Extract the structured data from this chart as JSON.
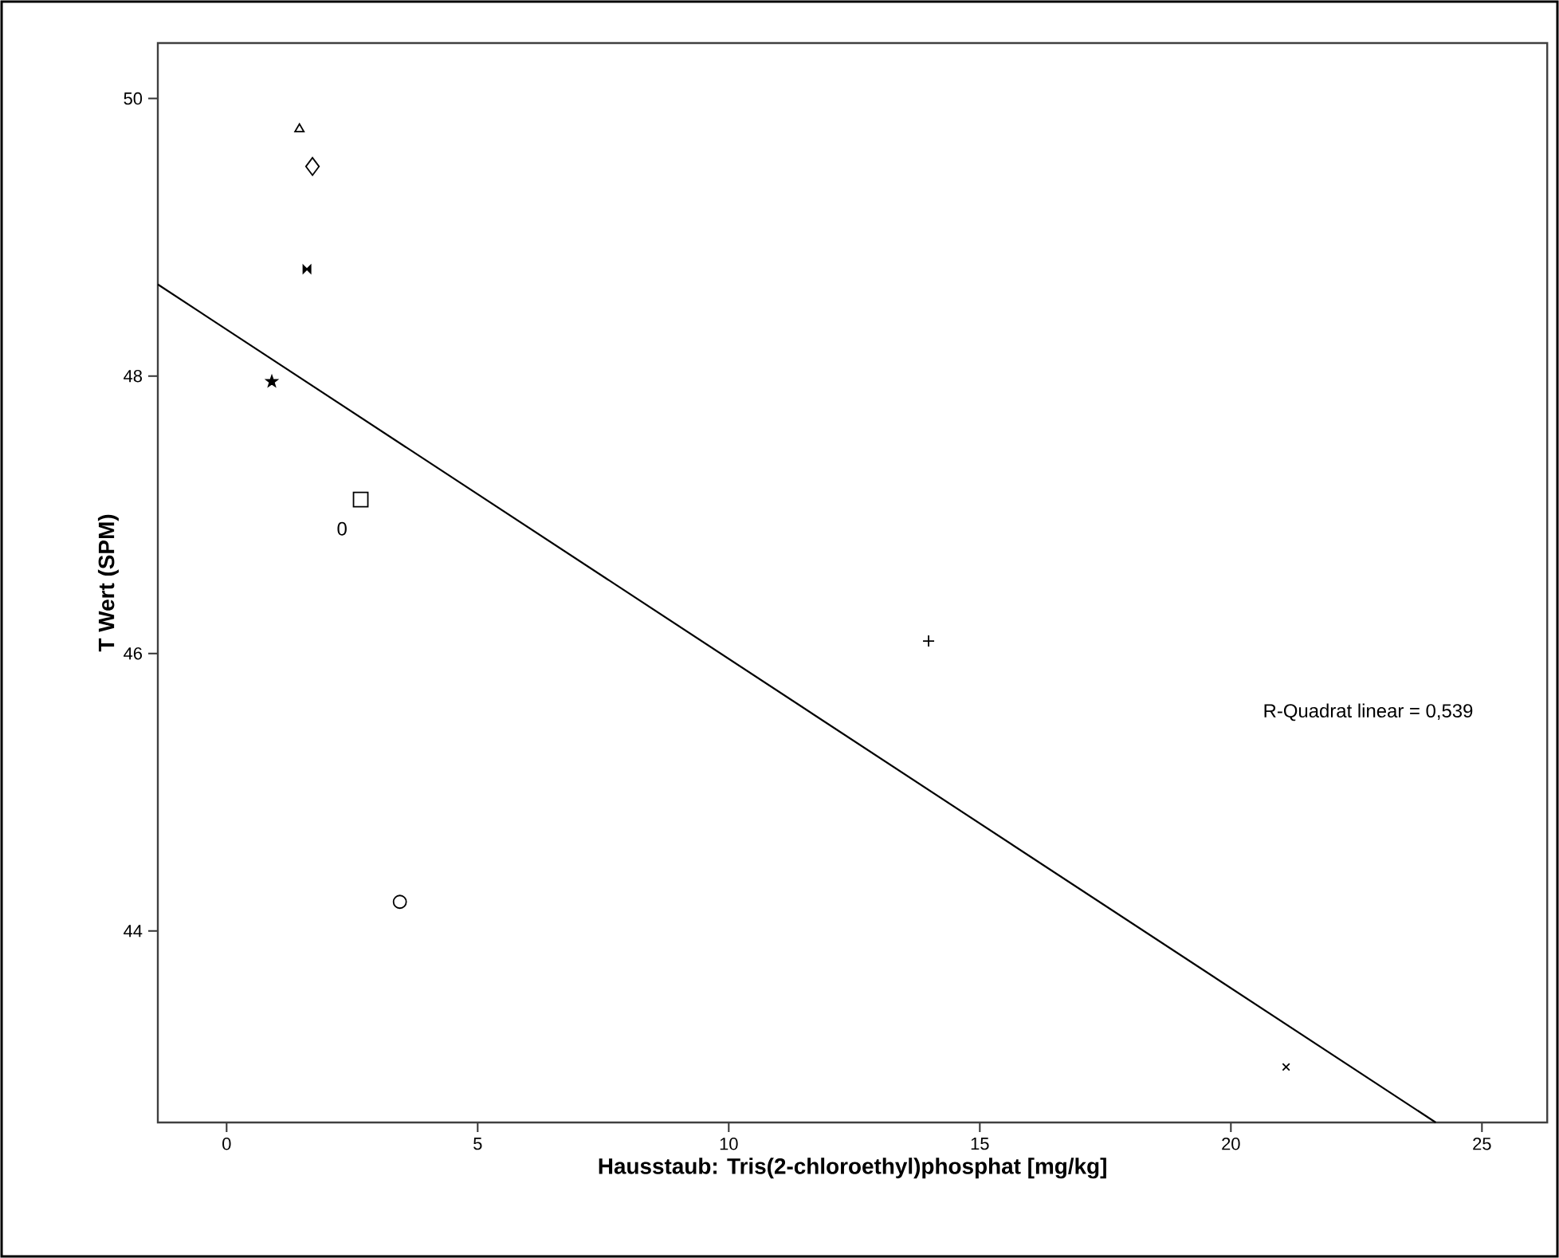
{
  "chart_data": {
    "type": "scatter",
    "xlabel": "Hausstaub: Tris(2-chloroethyl)phosphat [mg/kg]",
    "ylabel": "T Wert (SPM)",
    "xlim": [
      -1.37,
      26.3
    ],
    "ylim": [
      42.62,
      50.4
    ],
    "xticks": [
      0,
      5,
      10,
      15,
      20,
      25
    ],
    "yticks": [
      44,
      46,
      48,
      50
    ],
    "series": [
      {
        "x": [
          1.45
        ],
        "values": [
          49.78
        ],
        "marker": "triangle",
        "color": "#000000"
      },
      {
        "x": [
          1.71
        ],
        "values": [
          49.51
        ],
        "marker": "diamond",
        "color": "#000000"
      },
      {
        "x": [
          1.6
        ],
        "values": [
          48.77
        ],
        "color": "#000000"
      },
      {
        "x": [
          0.9
        ],
        "values": [
          47.96
        ],
        "marker": "star",
        "color": "#000000"
      },
      {
        "x": [
          2.67
        ],
        "values": [
          47.11
        ],
        "marker": "square",
        "color": "#000000"
      },
      {
        "x": [
          3.45
        ],
        "values": [
          44.21
        ],
        "marker": "circle",
        "color": "#000000"
      },
      {
        "x": [
          13.98
        ],
        "values": [
          46.09
        ],
        "marker": "plus",
        "color": "#000000"
      },
      {
        "x": [
          21.1
        ],
        "values": [
          43.02
        ],
        "marker": "cross",
        "color": "#000000"
      },
      {
        "type": "line",
        "x": [
          -1.37,
          24.08
        ],
        "values": [
          48.66,
          42.62
        ],
        "marker": "none",
        "line_style": "solid",
        "color": "#000000"
      }
    ],
    "annotations": [
      "R-Quadrat linear = 0,539",
      "0"
    ]
  }
}
